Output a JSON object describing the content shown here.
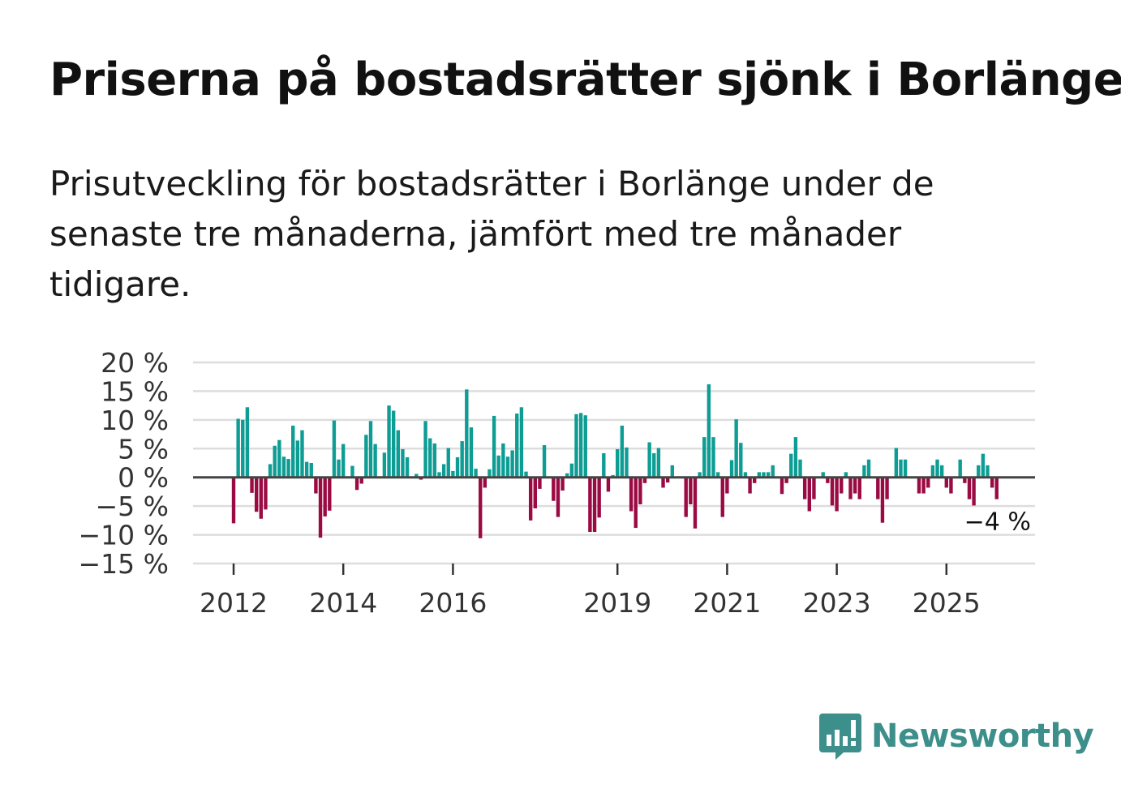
{
  "header": {
    "title": "Priserna på bostadsrätter sjönk i Borlänge",
    "subtitle": "Prisutveckling för bostadsrätter i Borlänge under de senaste tre månaderna, jämfört med tre månader tidigare."
  },
  "brand": {
    "name": "Newsworthy"
  },
  "colors": {
    "positive": "#0e9d94",
    "negative": "#9a0a43",
    "grid": "#dddddd",
    "zero_line": "#444444",
    "brand": "#3d8f8b"
  },
  "chart_data": {
    "type": "bar",
    "title": "Priserna på bostadsrätter sjönk i Borlänge",
    "xlabel": "",
    "ylabel": "",
    "unit": "%",
    "ylim": [
      -15,
      20
    ],
    "yticks": [
      20,
      15,
      10,
      5,
      0,
      -5,
      -10,
      -15
    ],
    "ytick_labels": [
      "20 %",
      "15 %",
      "10 %",
      "5 %",
      "0 %",
      "−5 %",
      "−10 %",
      "−15 %"
    ],
    "xticks": [
      2012,
      2014,
      2016,
      2019,
      2021,
      2023,
      2025
    ],
    "xtick_labels": [
      "2012",
      "2014",
      "2016",
      "2019",
      "2021",
      "2023",
      "2025"
    ],
    "x_start": 2012.0,
    "months_per_bar": 1,
    "last_value_label": "−4 %",
    "values": [
      -8,
      10.2,
      10,
      12.2,
      -2.7,
      -6,
      -7.2,
      -5.6,
      2.3,
      5.5,
      6.5,
      3.6,
      3.2,
      9,
      6.4,
      8.2,
      2.7,
      2.5,
      -2.8,
      -10.5,
      -6.8,
      -5.8,
      9.9,
      3.1,
      5.8,
      0,
      2,
      -2.2,
      -1.1,
      7.4,
      9.8,
      5.8,
      0,
      4.3,
      12.5,
      11.6,
      8.2,
      4.9,
      3.5,
      0,
      0.6,
      -0.4,
      9.8,
      6.8,
      5.9,
      0.9,
      2.3,
      5.1,
      1.1,
      3.5,
      6.3,
      15.3,
      8.7,
      1.5,
      -10.6,
      -1.8,
      1.4,
      10.7,
      3.8,
      5.9,
      3.6,
      4.7,
      11.1,
      12.2,
      1,
      -7.5,
      -5.4,
      -2,
      5.6,
      0,
      -4.1,
      -6.9,
      -2.3,
      0.7,
      2.4,
      11,
      11.2,
      10.8,
      -9.5,
      -9.5,
      -7,
      4.2,
      -2.5,
      0.4,
      4.9,
      9,
      5.2,
      -5.9,
      -8.8,
      -4.7,
      -1,
      6.1,
      4.2,
      5.1,
      -1.8,
      -0.9,
      2.1,
      0,
      0,
      -6.9,
      -4.7,
      -8.9,
      0.9,
      7,
      16.2,
      7,
      0.9,
      -6.9,
      -2.8,
      3,
      10.1,
      6,
      0.9,
      -2.8,
      -1,
      0.9,
      0.9,
      0.9,
      2.1,
      0,
      -2.9,
      -1,
      4.1,
      7,
      3.1,
      -3.8,
      -5.9,
      -3.8,
      0,
      0.9,
      -1,
      -4.9,
      -5.9,
      -2.8,
      0.9,
      -3.8,
      -2.8,
      -3.8,
      2.1,
      3.1,
      0,
      -3.8,
      -7.9,
      -3.8,
      0,
      5.1,
      3.1,
      3.1,
      0,
      0,
      -2.8,
      -2.8,
      -1.8,
      2.1,
      3.1,
      2.1,
      -1.8,
      -2.8,
      0,
      3.1,
      -1,
      -3.8,
      -4.9,
      2.1,
      4.1,
      2.1,
      -1.8,
      -3.8
    ]
  }
}
